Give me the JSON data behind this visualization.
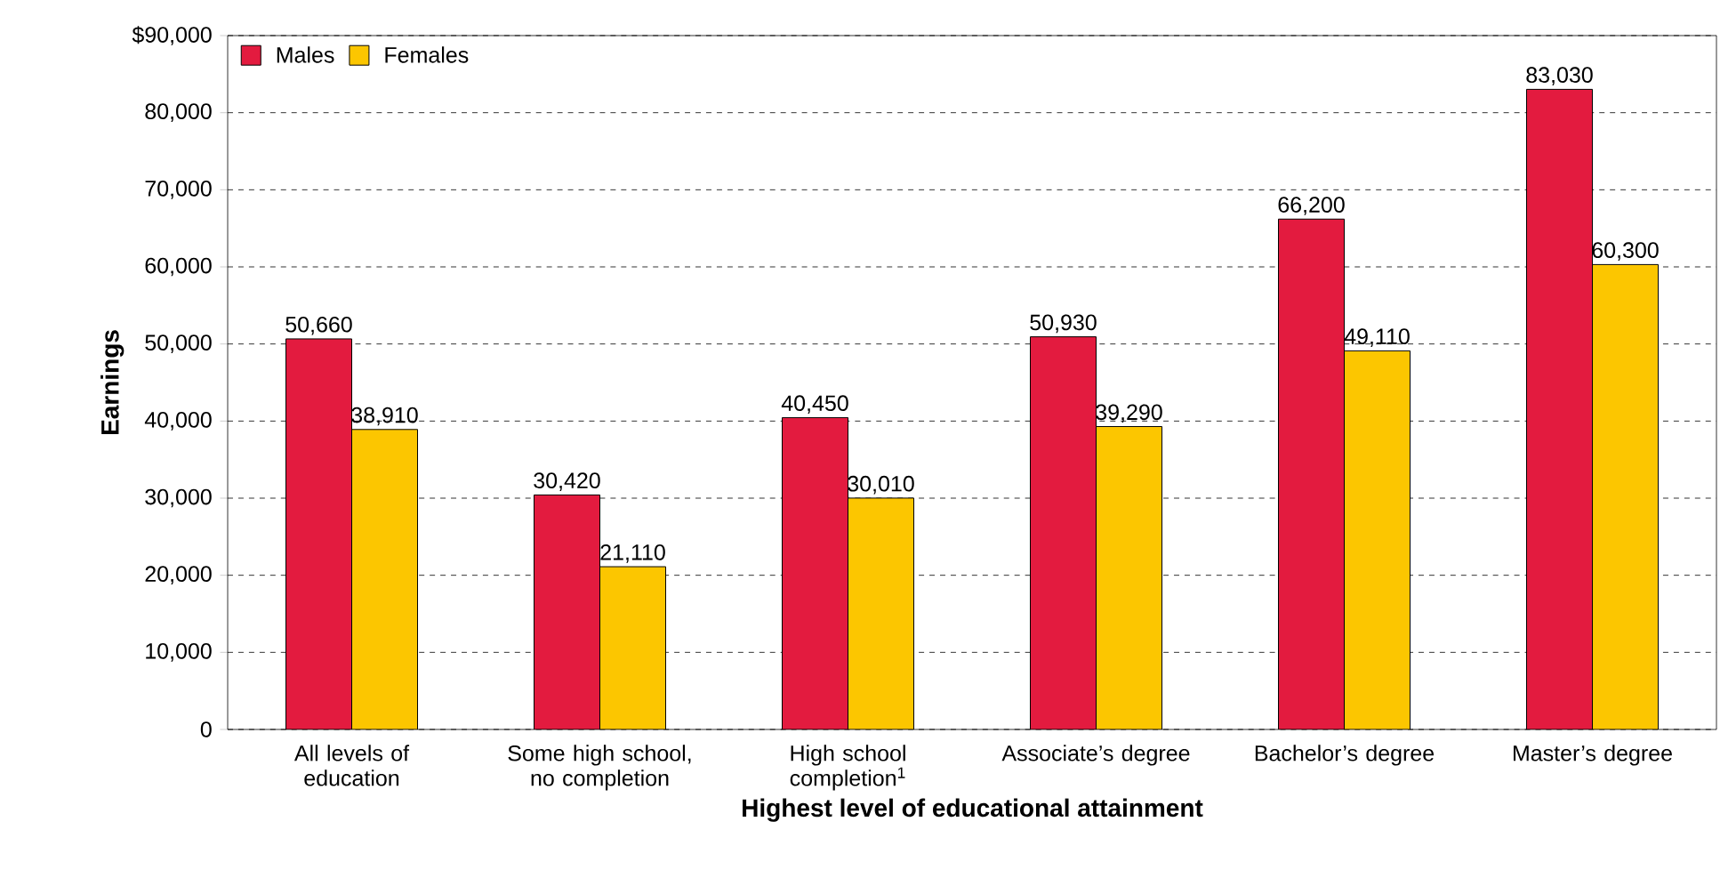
{
  "chart_data": {
    "type": "bar",
    "xlabel": "Highest level of educational attainment",
    "ylabel": "Earnings",
    "categories": [
      "All levels of education",
      "Some high school, no completion",
      "High school completion$^{1}$",
      "Associate’s degree",
      "Bachelor’s degree",
      "Master’s degree"
    ],
    "series": [
      {
        "name": "Males",
        "color": "#e31b3f",
        "values": [
          50660,
          30420,
          40450,
          50930,
          66200,
          83030
        ],
        "value_labels": [
          "50,660",
          "30,420",
          "40,450",
          "50,930",
          "66,200",
          "83,030"
        ]
      },
      {
        "name": "Females",
        "color": "#fcc600",
        "values": [
          38910,
          21110,
          30010,
          39290,
          49110,
          60300
        ],
        "value_labels": [
          "38,910",
          "21,110",
          "30,010",
          "39,290",
          "49,110",
          "60,300"
        ]
      }
    ],
    "ylim": [
      0,
      90000
    ],
    "yticks": [
      0,
      {
        "value": 10000,
        "label": "10,000"
      },
      {
        "value": 20000,
        "label": "20,000"
      },
      {
        "value": 30000,
        "label": "30,000"
      },
      {
        "value": 40000,
        "label": "40,000"
      },
      {
        "value": 50000,
        "label": "50,000"
      },
      {
        "value": 60000,
        "label": "60,000"
      },
      {
        "value": 70000,
        "label": "70,000"
      },
      {
        "value": 80000,
        "label": "80,000"
      },
      {
        "value": 90000,
        "label": "$90,000"
      }
    ],
    "grid": "y",
    "legend": "top left"
  }
}
